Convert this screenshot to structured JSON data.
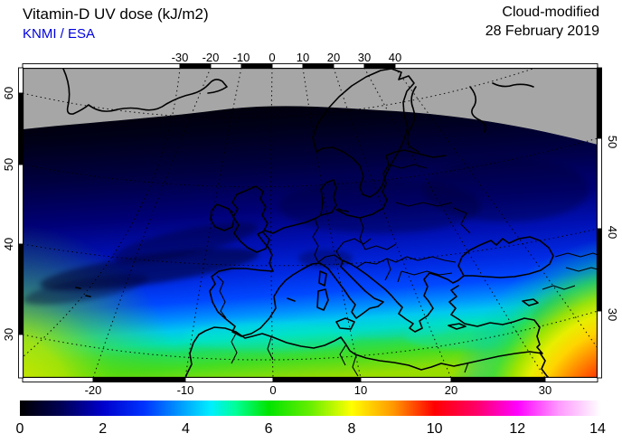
{
  "header": {
    "title": "Vitamin-D UV dose (kJ/m2)",
    "source": "KNMI / ESA",
    "source_color": "#0000dd",
    "mode": "Cloud-modified",
    "date": "28 February 2019"
  },
  "map": {
    "axes": {
      "top_ticks": [
        "-30",
        "-20",
        "-10",
        "0",
        "10",
        "20",
        "30",
        "40"
      ],
      "bottom_ticks": [
        "-20",
        "-10",
        "0",
        "10",
        "20",
        "30"
      ],
      "left_ticks": [
        "60",
        "50",
        "40",
        "30"
      ],
      "right_ticks": [
        "50",
        "40",
        "30"
      ]
    },
    "no_data_color": "#a6a6a6",
    "coastline_color": "#000000"
  },
  "colorbar": {
    "min": 0,
    "max": 14,
    "tick_labels": [
      "0",
      "2",
      "4",
      "6",
      "8",
      "10",
      "12",
      "14"
    ],
    "stops": [
      {
        "v": 0,
        "c": "#000000"
      },
      {
        "v": 1,
        "c": "#000055"
      },
      {
        "v": 2,
        "c": "#0000cc"
      },
      {
        "v": 3,
        "c": "#0033ff"
      },
      {
        "v": 4,
        "c": "#00aaff"
      },
      {
        "v": 4.6,
        "c": "#00eeff"
      },
      {
        "v": 5.2,
        "c": "#00ff99"
      },
      {
        "v": 6,
        "c": "#00e400"
      },
      {
        "v": 7,
        "c": "#66ee00"
      },
      {
        "v": 8,
        "c": "#ffff00"
      },
      {
        "v": 9,
        "c": "#ff9900"
      },
      {
        "v": 10,
        "c": "#ff0000"
      },
      {
        "v": 11,
        "c": "#ff0066"
      },
      {
        "v": 12,
        "c": "#ff00ff"
      },
      {
        "v": 13,
        "c": "#ff99ff"
      },
      {
        "v": 14,
        "c": "#ffffff"
      }
    ]
  }
}
